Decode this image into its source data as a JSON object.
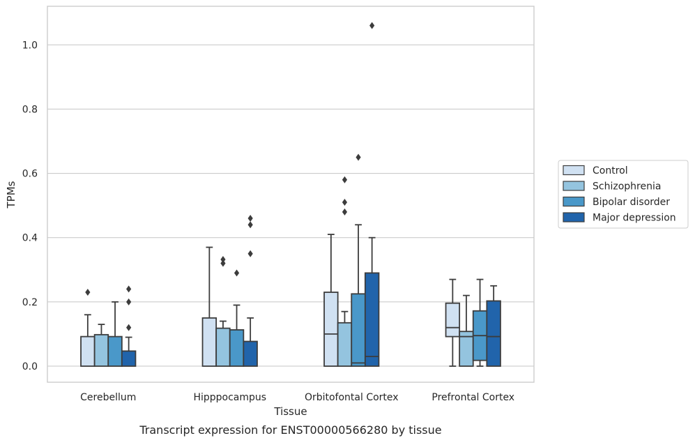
{
  "chart_data": {
    "type": "boxplot",
    "xlabel": "Tissue",
    "ylabel": "TPMs",
    "caption": "Transcript expression for ENST00000566280 by tissue",
    "categories": [
      "Cerebellum",
      "Hipppocampus",
      "Orbitofontal Cortex",
      "Prefrontal Cortex"
    ],
    "ylim": [
      -0.05,
      1.12
    ],
    "yticks": [
      0.0,
      0.2,
      0.4,
      0.6,
      0.8,
      1.0
    ],
    "ytick_labels": [
      "0.0",
      "0.2",
      "0.4",
      "0.6",
      "0.8",
      "1.0"
    ],
    "grid": "horizontal",
    "legend_position": "right",
    "series": [
      {
        "name": "Control",
        "color": "#d0e1f2",
        "boxes": [
          {
            "whislo": 0.0,
            "q1": 0.0,
            "med": 0.0,
            "q3": 0.092,
            "whishi": 0.16,
            "fliers": [
              0.23
            ]
          },
          {
            "whislo": 0.0,
            "q1": 0.0,
            "med": 0.0,
            "q3": 0.15,
            "whishi": 0.37,
            "fliers": []
          },
          {
            "whislo": 0.0,
            "q1": 0.0,
            "med": 0.1,
            "q3": 0.23,
            "whishi": 0.41,
            "fliers": []
          },
          {
            "whislo": 0.0,
            "q1": 0.092,
            "med": 0.12,
            "q3": 0.196,
            "whishi": 0.27,
            "fliers": []
          }
        ]
      },
      {
        "name": "Schizophrenia",
        "color": "#94c4df",
        "boxes": [
          {
            "whislo": 0.0,
            "q1": 0.0,
            "med": 0.0,
            "q3": 0.098,
            "whishi": 0.13,
            "fliers": []
          },
          {
            "whislo": 0.0,
            "q1": 0.0,
            "med": 0.0,
            "q3": 0.118,
            "whishi": 0.14,
            "fliers": [
              0.32,
              0.332
            ]
          },
          {
            "whislo": 0.0,
            "q1": 0.0,
            "med": 0.0,
            "q3": 0.135,
            "whishi": 0.17,
            "fliers": [
              0.48,
              0.51,
              0.58
            ]
          },
          {
            "whislo": 0.0,
            "q1": 0.0,
            "med": 0.092,
            "q3": 0.108,
            "whishi": 0.22,
            "fliers": []
          }
        ]
      },
      {
        "name": "Bipolar disorder",
        "color": "#4a98c9",
        "boxes": [
          {
            "whislo": 0.0,
            "q1": 0.0,
            "med": 0.0,
            "q3": 0.092,
            "whishi": 0.2,
            "fliers": []
          },
          {
            "whislo": 0.0,
            "q1": 0.0,
            "med": 0.0,
            "q3": 0.113,
            "whishi": 0.19,
            "fliers": [
              0.29
            ]
          },
          {
            "whislo": 0.0,
            "q1": 0.0,
            "med": 0.01,
            "q3": 0.225,
            "whishi": 0.44,
            "fliers": [
              0.65
            ]
          },
          {
            "whislo": 0.0,
            "q1": 0.018,
            "med": 0.095,
            "q3": 0.172,
            "whishi": 0.27,
            "fliers": []
          }
        ]
      },
      {
        "name": "Major depression",
        "color": "#2164ab",
        "boxes": [
          {
            "whislo": 0.0,
            "q1": 0.0,
            "med": 0.0,
            "q3": 0.047,
            "whishi": 0.09,
            "fliers": [
              0.12,
              0.2,
              0.24
            ]
          },
          {
            "whislo": 0.0,
            "q1": 0.0,
            "med": 0.0,
            "q3": 0.077,
            "whishi": 0.15,
            "fliers": [
              0.35,
              0.44,
              0.46
            ]
          },
          {
            "whislo": 0.0,
            "q1": 0.0,
            "med": 0.03,
            "q3": 0.29,
            "whishi": 0.4,
            "fliers": [
              1.06
            ]
          },
          {
            "whislo": 0.0,
            "q1": 0.0,
            "med": 0.092,
            "q3": 0.203,
            "whishi": 0.25,
            "fliers": []
          }
        ]
      }
    ]
  }
}
